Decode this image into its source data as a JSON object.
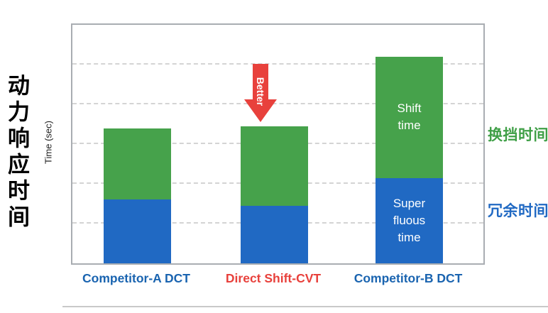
{
  "page": {
    "title_vertical": "动力响应时间",
    "better_label": "Better"
  },
  "legend": {
    "shift_time": {
      "label": "换挡时间",
      "color": "#3f9f46"
    },
    "superfluous_time": {
      "label": "冗余时间",
      "color": "#2069c3"
    }
  },
  "bar_annotations": {
    "shift_time": "Shift time",
    "superfluous_time": "Super fluous time"
  },
  "category_colors": [
    "#1a64b0",
    "#e8413c",
    "#1a64b0"
  ],
  "chart_data": {
    "type": "bar",
    "stacked": true,
    "categories": [
      "Competitor-A DCT",
      "Direct Shift-CVT",
      "Competitor-B DCT"
    ],
    "series": [
      {
        "name": "Superfluous time",
        "color": "#2069c3",
        "values": [
          1.6,
          1.45,
          2.15
        ]
      },
      {
        "name": "Shift time",
        "color": "#46a24b",
        "values": [
          1.8,
          2.0,
          3.05
        ]
      }
    ],
    "ylabel": "Time (sec)",
    "ylim": [
      0,
      6
    ],
    "gridline_values": [
      1,
      2,
      3,
      4,
      5
    ],
    "grid_style": "dashed",
    "legend_position": "right"
  }
}
